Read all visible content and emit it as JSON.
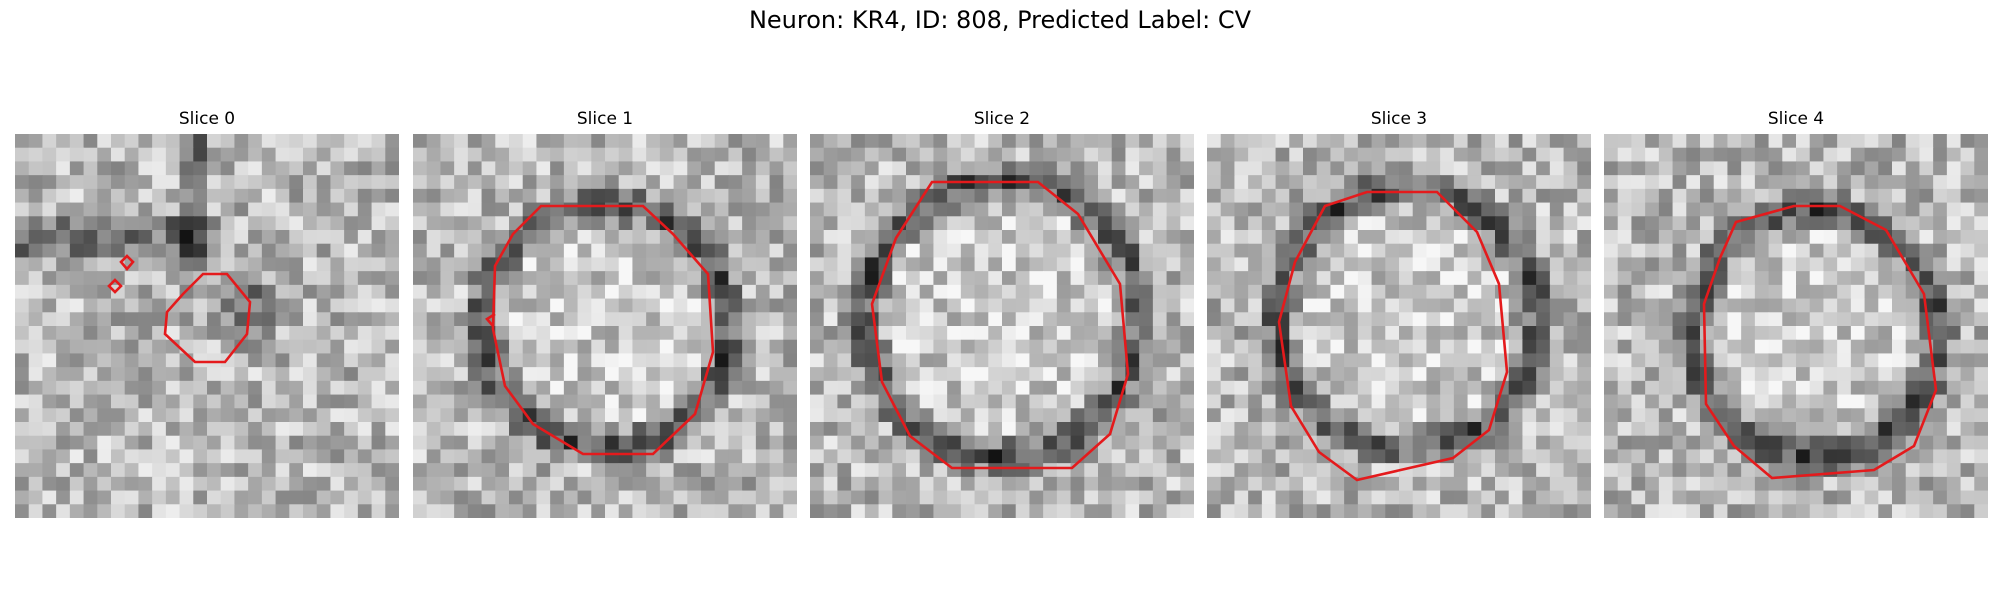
{
  "figure": {
    "title": "Neuron: KR4, ID: 808, Predicted Label: CV"
  },
  "slices": [
    {
      "title": "Slice 0"
    },
    {
      "title": "Slice 1"
    },
    {
      "title": "Slice 2"
    },
    {
      "title": "Slice 3"
    },
    {
      "title": "Slice 4"
    }
  ],
  "colors": {
    "contour": "#e41a1c",
    "background": "#ffffff"
  }
}
